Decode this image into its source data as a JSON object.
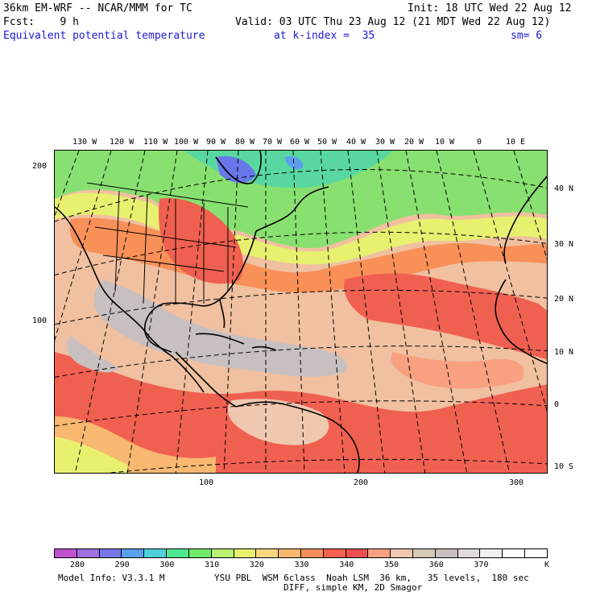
{
  "header": {
    "model": "36km EM-WRF -- NCAR/MMM for TC",
    "init": "Init: 18 UTC Wed 22 Aug 12",
    "fcst": "Fcst:    9 h",
    "valid": "Valid: 03 UTC Thu 23 Aug 12 (21 MDT Wed 22 Aug 12)",
    "field": "Equivalent potential temperature",
    "kindex": "at k-index =  35",
    "sm": "sm= 6"
  },
  "map": {
    "lon_labels": [
      "130 W",
      "120 W",
      "110 W",
      "100 W",
      "90 W",
      "80 W",
      "70 W",
      "60 W",
      "50 W",
      "40 W",
      "30 W",
      "20 W",
      "10 W",
      "0",
      "10 E"
    ],
    "lat_labels": [
      "40 N",
      "30 N",
      "20 N",
      "10 N",
      "0",
      "10 S"
    ],
    "grid_left": [
      "200",
      "100"
    ],
    "grid_bottom": [
      "100",
      "200",
      "300"
    ]
  },
  "colorbar": {
    "ticks": [
      "280",
      "290",
      "300",
      "310",
      "320",
      "330",
      "340",
      "350",
      "360",
      "370"
    ],
    "unit": "K",
    "colors": [
      "#c050d0",
      "#a070e0",
      "#7878ea",
      "#5aa0ee",
      "#50d0d8",
      "#50e890",
      "#70ec68",
      "#b8f070",
      "#e8f070",
      "#f8d880",
      "#f8b870",
      "#f89058",
      "#f86050",
      "#f05050",
      "#f8a080",
      "#f0c8b0",
      "#d8c8b8",
      "#c8c0c0",
      "#e0dcdc",
      "#f0f0f0",
      "#ffffff",
      "#ffffff"
    ]
  },
  "footer": {
    "line1_left": "Model Info: V3.3.1 M",
    "line1_right": "YSU PBL  WSM 6class  Noah LSM  36 km,   35 levels,  180 sec",
    "line2": "DIFF, simple KM, 2D Smagor"
  }
}
